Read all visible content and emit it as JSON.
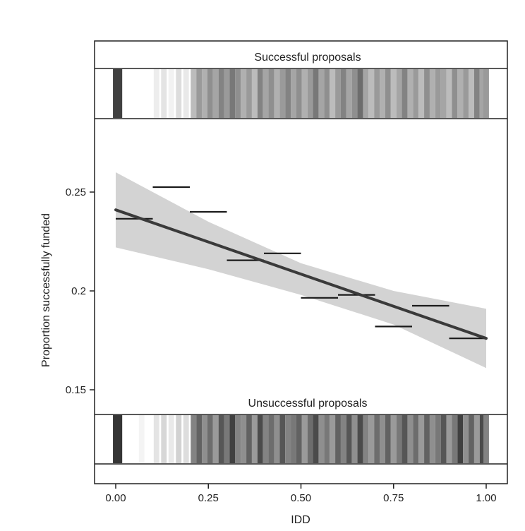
{
  "chart_data": {
    "type": "line",
    "xlabel": "IDD",
    "ylabel": "Proportion successfully funded",
    "xlim": [
      -0.05,
      1.05
    ],
    "ylim": [
      0.137,
      0.282
    ],
    "x_ticks": [
      0.0,
      0.25,
      0.5,
      0.75,
      1.0
    ],
    "x_tick_labels": [
      "0.00",
      "0.25",
      "0.50",
      "0.75",
      "1.00"
    ],
    "y_ticks": [
      0.15,
      0.2,
      0.25
    ],
    "y_tick_labels": [
      "0.15",
      "0.2",
      "0.25"
    ],
    "grid": false,
    "fit_line": {
      "x": [
        0.0,
        1.0
      ],
      "y": [
        0.241,
        0.176
      ]
    },
    "confidence_band": {
      "x": [
        0.0,
        0.25,
        0.5,
        0.75,
        1.0
      ],
      "lower": [
        0.222,
        0.211,
        0.198,
        0.183,
        0.161
      ],
      "upper": [
        0.26,
        0.235,
        0.214,
        0.2,
        0.191
      ]
    },
    "binned_means": [
      {
        "x0": 0.0,
        "x1": 0.1,
        "y": 0.2365
      },
      {
        "x0": 0.1,
        "x1": 0.2,
        "y": 0.2525
      },
      {
        "x0": 0.2,
        "x1": 0.3,
        "y": 0.24
      },
      {
        "x0": 0.3,
        "x1": 0.4,
        "y": 0.2155
      },
      {
        "x0": 0.4,
        "x1": 0.5,
        "y": 0.219
      },
      {
        "x0": 0.5,
        "x1": 0.6,
        "y": 0.1965
      },
      {
        "x0": 0.6,
        "x1": 0.7,
        "y": 0.198
      },
      {
        "x0": 0.7,
        "x1": 0.8,
        "y": 0.182
      },
      {
        "x0": 0.8,
        "x1": 0.9,
        "y": 0.1925
      },
      {
        "x0": 0.9,
        "x1": 1.0,
        "y": 0.176
      }
    ],
    "rug_panels": [
      {
        "title": "Successful proposals",
        "bands": [
          {
            "x": 0.0,
            "shade": 0.85
          },
          {
            "x": 0.01,
            "shade": 0.85
          },
          {
            "x": 0.11,
            "shade": 0.08
          },
          {
            "x": 0.13,
            "shade": 0.12
          },
          {
            "x": 0.15,
            "shade": 0.06
          },
          {
            "x": 0.17,
            "shade": 0.15
          },
          {
            "x": 0.19,
            "shade": 0.1
          },
          {
            "x": 0.21,
            "shade": 0.3
          },
          {
            "x": 0.225,
            "shade": 0.45
          },
          {
            "x": 0.24,
            "shade": 0.35
          },
          {
            "x": 0.255,
            "shade": 0.5
          },
          {
            "x": 0.27,
            "shade": 0.4
          },
          {
            "x": 0.285,
            "shade": 0.55
          },
          {
            "x": 0.3,
            "shade": 0.45
          },
          {
            "x": 0.315,
            "shade": 0.6
          },
          {
            "x": 0.33,
            "shade": 0.5
          },
          {
            "x": 0.345,
            "shade": 0.35
          },
          {
            "x": 0.36,
            "shade": 0.45
          },
          {
            "x": 0.375,
            "shade": 0.3
          },
          {
            "x": 0.39,
            "shade": 0.55
          },
          {
            "x": 0.405,
            "shade": 0.4
          },
          {
            "x": 0.42,
            "shade": 0.5
          },
          {
            "x": 0.435,
            "shade": 0.35
          },
          {
            "x": 0.45,
            "shade": 0.45
          },
          {
            "x": 0.465,
            "shade": 0.55
          },
          {
            "x": 0.48,
            "shade": 0.4
          },
          {
            "x": 0.495,
            "shade": 0.5
          },
          {
            "x": 0.51,
            "shade": 0.35
          },
          {
            "x": 0.525,
            "shade": 0.45
          },
          {
            "x": 0.54,
            "shade": 0.6
          },
          {
            "x": 0.555,
            "shade": 0.4
          },
          {
            "x": 0.57,
            "shade": 0.5
          },
          {
            "x": 0.585,
            "shade": 0.3
          },
          {
            "x": 0.6,
            "shade": 0.45
          },
          {
            "x": 0.615,
            "shade": 0.55
          },
          {
            "x": 0.63,
            "shade": 0.4
          },
          {
            "x": 0.645,
            "shade": 0.5
          },
          {
            "x": 0.66,
            "shade": 0.65
          },
          {
            "x": 0.675,
            "shade": 0.4
          },
          {
            "x": 0.69,
            "shade": 0.3
          },
          {
            "x": 0.705,
            "shade": 0.45
          },
          {
            "x": 0.72,
            "shade": 0.35
          },
          {
            "x": 0.735,
            "shade": 0.5
          },
          {
            "x": 0.75,
            "shade": 0.3
          },
          {
            "x": 0.765,
            "shade": 0.4
          },
          {
            "x": 0.78,
            "shade": 0.55
          },
          {
            "x": 0.795,
            "shade": 0.35
          },
          {
            "x": 0.81,
            "shade": 0.45
          },
          {
            "x": 0.825,
            "shade": 0.3
          },
          {
            "x": 0.84,
            "shade": 0.5
          },
          {
            "x": 0.855,
            "shade": 0.35
          },
          {
            "x": 0.87,
            "shade": 0.45
          },
          {
            "x": 0.885,
            "shade": 0.4
          },
          {
            "x": 0.9,
            "shade": 0.3
          },
          {
            "x": 0.915,
            "shade": 0.5
          },
          {
            "x": 0.93,
            "shade": 0.35
          },
          {
            "x": 0.945,
            "shade": 0.45
          },
          {
            "x": 0.96,
            "shade": 0.3
          },
          {
            "x": 0.975,
            "shade": 0.55
          },
          {
            "x": 0.99,
            "shade": 0.4
          },
          {
            "x": 1.0,
            "shade": 0.45
          }
        ]
      },
      {
        "title": "Unsuccessful proposals",
        "bands": [
          {
            "x": 0.0,
            "shade": 0.9
          },
          {
            "x": 0.01,
            "shade": 0.9
          },
          {
            "x": 0.07,
            "shade": 0.05
          },
          {
            "x": 0.11,
            "shade": 0.12
          },
          {
            "x": 0.13,
            "shade": 0.18
          },
          {
            "x": 0.15,
            "shade": 0.1
          },
          {
            "x": 0.17,
            "shade": 0.2
          },
          {
            "x": 0.19,
            "shade": 0.15
          },
          {
            "x": 0.21,
            "shade": 0.55
          },
          {
            "x": 0.225,
            "shade": 0.7
          },
          {
            "x": 0.24,
            "shade": 0.5
          },
          {
            "x": 0.255,
            "shade": 0.65
          },
          {
            "x": 0.27,
            "shade": 0.45
          },
          {
            "x": 0.285,
            "shade": 0.75
          },
          {
            "x": 0.3,
            "shade": 0.6
          },
          {
            "x": 0.315,
            "shade": 0.85
          },
          {
            "x": 0.33,
            "shade": 0.55
          },
          {
            "x": 0.345,
            "shade": 0.5
          },
          {
            "x": 0.36,
            "shade": 0.7
          },
          {
            "x": 0.375,
            "shade": 0.45
          },
          {
            "x": 0.39,
            "shade": 0.8
          },
          {
            "x": 0.405,
            "shade": 0.55
          },
          {
            "x": 0.42,
            "shade": 0.65
          },
          {
            "x": 0.435,
            "shade": 0.5
          },
          {
            "x": 0.45,
            "shade": 0.75
          },
          {
            "x": 0.465,
            "shade": 0.55
          },
          {
            "x": 0.48,
            "shade": 0.6
          },
          {
            "x": 0.495,
            "shade": 0.7
          },
          {
            "x": 0.51,
            "shade": 0.45
          },
          {
            "x": 0.525,
            "shade": 0.65
          },
          {
            "x": 0.54,
            "shade": 0.8
          },
          {
            "x": 0.555,
            "shade": 0.5
          },
          {
            "x": 0.57,
            "shade": 0.6
          },
          {
            "x": 0.585,
            "shade": 0.45
          },
          {
            "x": 0.6,
            "shade": 0.7
          },
          {
            "x": 0.615,
            "shade": 0.55
          },
          {
            "x": 0.63,
            "shade": 0.75
          },
          {
            "x": 0.645,
            "shade": 0.5
          },
          {
            "x": 0.66,
            "shade": 0.8
          },
          {
            "x": 0.675,
            "shade": 0.55
          },
          {
            "x": 0.69,
            "shade": 0.45
          },
          {
            "x": 0.705,
            "shade": 0.65
          },
          {
            "x": 0.72,
            "shade": 0.5
          },
          {
            "x": 0.735,
            "shade": 0.7
          },
          {
            "x": 0.75,
            "shade": 0.45
          },
          {
            "x": 0.765,
            "shade": 0.6
          },
          {
            "x": 0.78,
            "shade": 0.75
          },
          {
            "x": 0.795,
            "shade": 0.5
          },
          {
            "x": 0.81,
            "shade": 0.65
          },
          {
            "x": 0.825,
            "shade": 0.45
          },
          {
            "x": 0.84,
            "shade": 0.7
          },
          {
            "x": 0.855,
            "shade": 0.5
          },
          {
            "x": 0.87,
            "shade": 0.6
          },
          {
            "x": 0.885,
            "shade": 0.75
          },
          {
            "x": 0.9,
            "shade": 0.45
          },
          {
            "x": 0.915,
            "shade": 0.6
          },
          {
            "x": 0.93,
            "shade": 0.85
          },
          {
            "x": 0.945,
            "shade": 0.5
          },
          {
            "x": 0.96,
            "shade": 0.7
          },
          {
            "x": 0.975,
            "shade": 0.45
          },
          {
            "x": 0.99,
            "shade": 0.8
          },
          {
            "x": 1.0,
            "shade": 0.55
          }
        ]
      }
    ],
    "colors": {
      "fit_line": "#3a3a3a",
      "band": "#d3d3d3",
      "bin_segments": "#1a1a1a",
      "frame": "#222222"
    }
  }
}
